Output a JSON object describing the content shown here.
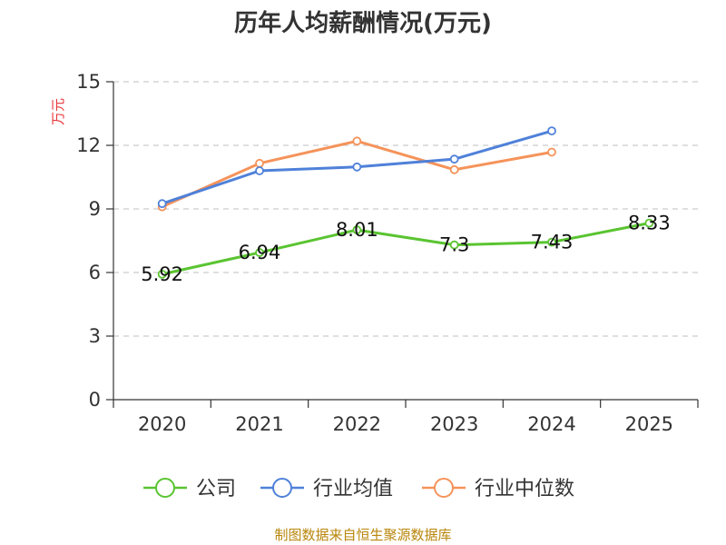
{
  "chart_data": {
    "type": "line",
    "title": "历年人均薪酬情况(万元)",
    "ylabel": "万元",
    "xlabel": "",
    "categories": [
      "2020",
      "2021",
      "2022",
      "2023",
      "2024",
      "2025"
    ],
    "ylim": [
      0,
      15
    ],
    "yticks": [
      0,
      3,
      6,
      9,
      12,
      15
    ],
    "grid": true,
    "legend_position": "bottom",
    "series": [
      {
        "name": "公司",
        "color": "#5ac431",
        "values": [
          5.92,
          6.94,
          8.01,
          7.3,
          7.43,
          8.33
        ],
        "labels": [
          "5.92",
          "6.94",
          "8.01",
          "7.3",
          "7.43",
          "8.33"
        ]
      },
      {
        "name": "行业均值",
        "color": "#4f81d9",
        "values": [
          9.25,
          10.8,
          10.98,
          11.35,
          12.68,
          null
        ]
      },
      {
        "name": "行业中位数",
        "color": "#f5935a",
        "values": [
          9.1,
          11.15,
          12.2,
          10.85,
          11.68,
          null
        ]
      }
    ],
    "source": "制图数据来自恒生聚源数据库"
  }
}
